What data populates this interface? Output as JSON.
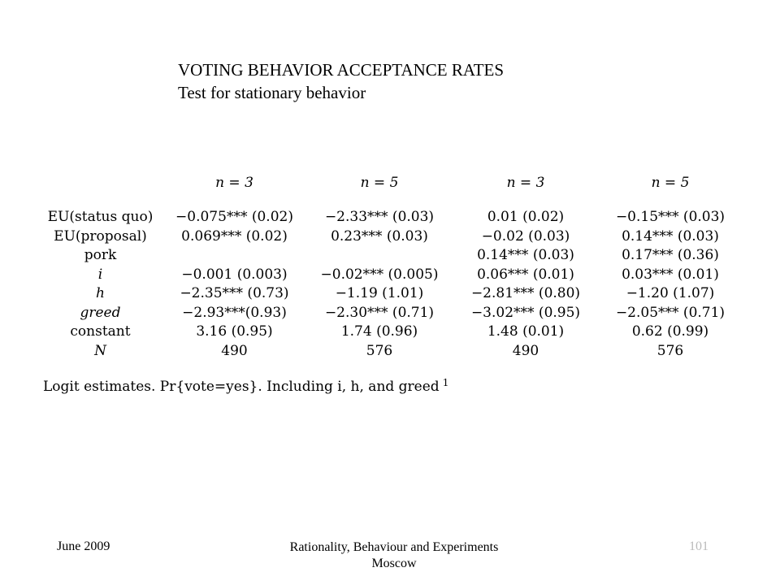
{
  "slide": {
    "title": "VOTING BEHAVIOR ACCEPTANCE RATES",
    "subtitle": "Test for stationary behavior"
  },
  "table": {
    "headers": [
      "n = 3",
      "n = 5",
      "n = 3",
      "n = 5"
    ],
    "rows": [
      {
        "label": "EU(status quo)",
        "italic": false,
        "cells": [
          "−0.075*** (0.02)",
          "−2.33*** (0.03)",
          "0.01 (0.02)",
          "−0.15*** (0.03)"
        ]
      },
      {
        "label": "EU(proposal)",
        "italic": false,
        "cells": [
          "0.069*** (0.02)",
          "0.23*** (0.03)",
          "−0.02 (0.03)",
          "0.14*** (0.03)"
        ]
      },
      {
        "label": "pork",
        "italic": false,
        "cells": [
          "",
          "",
          "0.14*** (0.03)",
          "0.17*** (0.36)"
        ]
      },
      {
        "label": "i",
        "italic": true,
        "cells": [
          "−0.001 (0.003)",
          "−0.02*** (0.005)",
          "0.06*** (0.01)",
          "0.03*** (0.01)"
        ]
      },
      {
        "label": "h",
        "italic": true,
        "cells": [
          "−2.35*** (0.73)",
          "−1.19 (1.01)",
          "−2.81*** (0.80)",
          "−1.20 (1.07)"
        ]
      },
      {
        "label": "greed",
        "italic": true,
        "cells": [
          "−2.93***(0.93)",
          "−2.30*** (0.71)",
          "−3.02*** (0.95)",
          "−2.05*** (0.71)"
        ]
      },
      {
        "label": "constant",
        "italic": false,
        "cells": [
          "3.16 (0.95)",
          "1.74 (0.96)",
          "1.48 (0.01)",
          "0.62 (0.99)"
        ]
      },
      {
        "label": "N",
        "italic": true,
        "cells": [
          "490",
          "576",
          "490",
          "576"
        ]
      }
    ]
  },
  "note": {
    "text": "Logit estimates. Pr{vote=yes}. Including i, h, and greed",
    "footnote_mark": "1"
  },
  "footer": {
    "date": "June 2009",
    "center_line1": "Rationality, Behaviour and Experiments",
    "center_line2": "Moscow",
    "page_number": "101"
  }
}
